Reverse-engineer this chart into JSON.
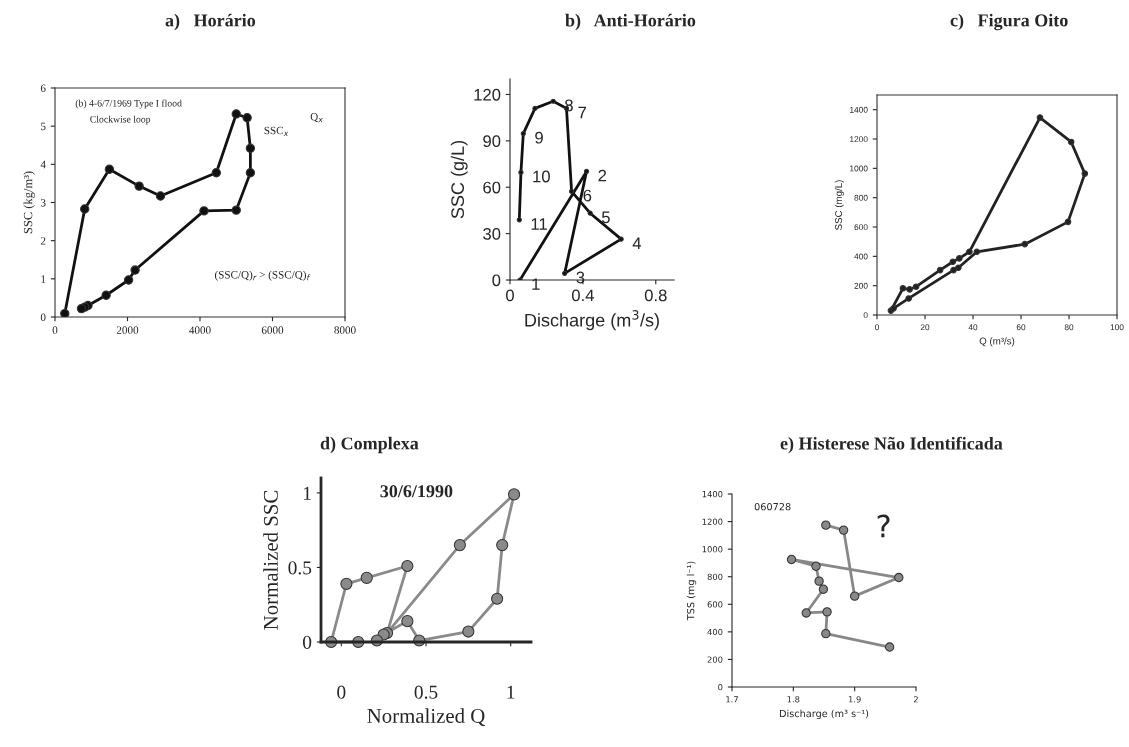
{
  "chart_data": [
    {
      "type": "line",
      "title": "a)   Horário",
      "ylabel": "SSC (kg/m³)",
      "marker": "circle",
      "grid": false,
      "x": [
        270,
        820,
        1500,
        2320,
        2910,
        4450,
        5000,
        5300,
        5390,
        5390,
        5000,
        4110,
        2210,
        2030,
        1410,
        910,
        820,
        730
      ],
      "series": [
        {
          "color": "#111111",
          "values": [
            0.09,
            2.83,
            3.87,
            3.43,
            3.17,
            3.78,
            5.32,
            5.22,
            4.42,
            3.78,
            2.8,
            2.78,
            1.23,
            0.97,
            0.57,
            0.3,
            0.26,
            0.22
          ]
        }
      ],
      "xlim": [
        0,
        8000
      ],
      "xticks": [
        0,
        2000,
        4000,
        6000,
        8000
      ],
      "ylim": [
        0,
        6
      ],
      "yticks": [
        0,
        1,
        2,
        3,
        4,
        5,
        6
      ],
      "annotations": [
        "(b) 4-6/7/1969 Type I flood",
        "Clockwise loop",
        "SSC$_{x}$",
        "Q$_{x}$",
        "(SSC/Q)$_{r}$ > (SSC/Q)$_{f}$"
      ]
    },
    {
      "type": "line",
      "title": "b)   Anti-Horário",
      "xlabel": "Discharge (m$^{3}$/s)",
      "ylabel": "SSC (g/L)",
      "marker": "circle",
      "grid": false,
      "x": [
        0.055,
        0.42,
        0.3,
        0.61,
        0.44,
        0.338,
        0.31,
        0.237,
        0.137,
        0.073,
        0.06,
        0.051
      ],
      "series": [
        {
          "color": "#111111",
          "values": [
            0,
            70.2,
            4.3,
            26.4,
            43.2,
            57.3,
            111,
            115.6,
            111,
            94.7,
            69.6,
            38.9
          ]
        }
      ],
      "xlim": [
        0,
        0.9
      ],
      "xticks": [
        0,
        0.4,
        0.8
      ],
      "ylim": [
        0,
        130
      ],
      "yticks": [
        0,
        30,
        60,
        90,
        120
      ],
      "annotations": [
        {
          "text": "1",
          "x": 0.055,
          "y": 0
        },
        {
          "text": "2",
          "x": 0.42,
          "y": 70.2
        },
        {
          "text": "3",
          "x": 0.3,
          "y": 4.3
        },
        {
          "text": "4",
          "x": 0.61,
          "y": 26.4
        },
        {
          "text": "5",
          "x": 0.44,
          "y": 43.2
        },
        {
          "text": "6",
          "x": 0.338,
          "y": 57.3
        },
        {
          "text": "7",
          "x": 0.31,
          "y": 111
        },
        {
          "text": "8",
          "x": 0.237,
          "y": 115.6
        },
        {
          "text": "9",
          "x": 0.073,
          "y": 94.7
        },
        {
          "text": "10",
          "x": 0.06,
          "y": 69.6
        },
        {
          "text": "11",
          "x": 0.051,
          "y": 38.9
        }
      ]
    },
    {
      "type": "line",
      "title": "c)   Figura Oito",
      "xlabel": "Q (m³/s)",
      "ylabel": "SSC (mg/L)",
      "marker": "circle",
      "grid": false,
      "x": [
        5.8,
        10.8,
        13.6,
        16.3,
        26.3,
        31.6,
        34.3,
        38.5,
        67.9,
        80.9,
        86.6,
        79.6,
        61.6,
        41.6,
        33.9,
        31.9,
        13.2,
        6.9
      ],
      "series": [
        {
          "color": "#222222",
          "values": [
            30,
            182,
            175,
            193,
            306,
            363,
            386,
            431,
            1346,
            1180,
            964,
            635,
            483,
            431,
            322,
            306,
            113,
            45
          ]
        }
      ],
      "xlim": [
        0,
        100
      ],
      "xticks": [
        0,
        20,
        40,
        60,
        80,
        100
      ],
      "ylim": [
        0,
        1500
      ],
      "yticks": [
        0,
        200,
        400,
        600,
        800,
        1000,
        1200,
        1400
      ]
    },
    {
      "type": "line",
      "title": "d) Complexa",
      "xlabel": "Normalized Q",
      "ylabel": "Normalized SSC",
      "marker": "circle",
      "grid": false,
      "x": [
        0.1,
        -0.06,
        0.03,
        0.15,
        0.39,
        0.27,
        0.7,
        1.02,
        0.95,
        0.92,
        0.75,
        0.46,
        0.39,
        0.25,
        0.21
      ],
      "series": [
        {
          "color": "#8a8a8a",
          "values": [
            0,
            0,
            0.39,
            0.43,
            0.51,
            0.06,
            0.65,
            0.99,
            0.65,
            0.29,
            0.07,
            0.01,
            0.14,
            0.05,
            0.01
          ]
        }
      ],
      "xlim": [
        -0.12,
        1.12
      ],
      "xticks": [
        0,
        0.5,
        1
      ],
      "ylim": [
        0,
        1.1
      ],
      "yticks": [
        0,
        0.5,
        1
      ],
      "annotations": [
        "30/6/1990"
      ]
    },
    {
      "type": "line",
      "title": "e) Histerese Não Identificada",
      "xlabel": "Discharge (m³ s⁻¹)",
      "ylabel": "TSS (mg l⁻¹)",
      "marker": "circle",
      "grid": false,
      "x": [
        1.853,
        1.882,
        1.9,
        1.972,
        1.797,
        1.837,
        1.842,
        1.849,
        1.821,
        1.855,
        1.853,
        1.957
      ],
      "series": [
        {
          "color": "#888888",
          "values": [
            1174,
            1138,
            659,
            794,
            925,
            876,
            768,
            709,
            537,
            545,
            387,
            290
          ]
        }
      ],
      "xlim": [
        1.7,
        2.0
      ],
      "xticks": [
        1.7,
        1.8,
        1.9,
        {
          "value": 2.0,
          "label": "2"
        }
      ],
      "ylim": [
        0,
        1400
      ],
      "yticks": [
        0,
        200,
        400,
        600,
        800,
        1000,
        1200,
        1400
      ],
      "annotations": [
        "060728",
        "?"
      ]
    }
  ]
}
